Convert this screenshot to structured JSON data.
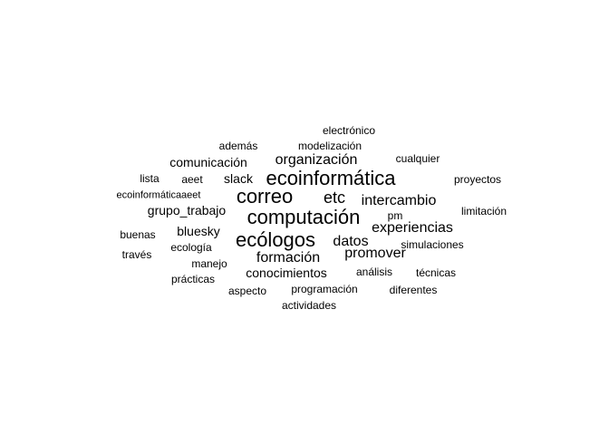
{
  "wordcloud": {
    "text_color": "#000000",
    "background": "#ffffff",
    "words": [
      {
        "text": "computación",
        "rank": 1
      },
      {
        "text": "ecoinformática",
        "rank": 1
      },
      {
        "text": "correo",
        "rank": 1
      },
      {
        "text": "ecólogos",
        "rank": 1
      },
      {
        "text": "etc",
        "rank": 2
      },
      {
        "text": "organización",
        "rank": 2
      },
      {
        "text": "intercambio",
        "rank": 2
      },
      {
        "text": "datos",
        "rank": 2
      },
      {
        "text": "promover",
        "rank": 2
      },
      {
        "text": "experiencias",
        "rank": 2
      },
      {
        "text": "formación",
        "rank": 2
      },
      {
        "text": "comunicación",
        "rank": 3
      },
      {
        "text": "bluesky",
        "rank": 3
      },
      {
        "text": "grupo_trabajo",
        "rank": 3
      },
      {
        "text": "slack",
        "rank": 3
      },
      {
        "text": "conocimientos",
        "rank": 3
      },
      {
        "text": "simulaciones",
        "rank": 3
      },
      {
        "text": "limitación",
        "rank": 3
      },
      {
        "text": "cualquier",
        "rank": 3
      },
      {
        "text": "proyectos",
        "rank": 3
      },
      {
        "text": "diferentes",
        "rank": 3
      },
      {
        "text": "técnicas",
        "rank": 3
      },
      {
        "text": "manejo",
        "rank": 3
      },
      {
        "text": "aspecto",
        "rank": 3
      },
      {
        "text": "ecología",
        "rank": 3
      },
      {
        "text": "buenas",
        "rank": 3
      },
      {
        "text": "través",
        "rank": 3
      },
      {
        "text": "lista",
        "rank": 3
      },
      {
        "text": "aeet",
        "rank": 3
      },
      {
        "text": "pm",
        "rank": 3
      },
      {
        "text": "además",
        "rank": 3
      },
      {
        "text": "análisis",
        "rank": 3
      },
      {
        "text": "modelización",
        "rank": 3
      },
      {
        "text": "electrónico",
        "rank": 3
      },
      {
        "text": "actividades",
        "rank": 3
      },
      {
        "text": "programación",
        "rank": 3
      },
      {
        "text": "prácticas",
        "rank": 3
      },
      {
        "text": "ecoinformáticaaeet",
        "rank": 3
      }
    ]
  }
}
